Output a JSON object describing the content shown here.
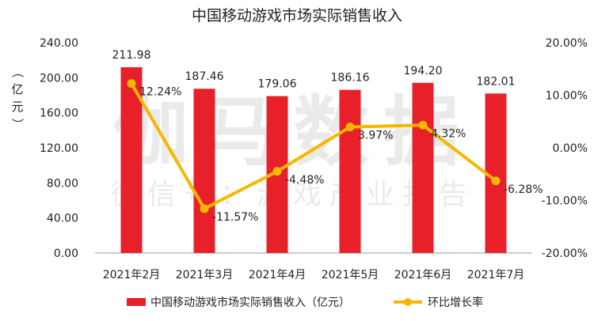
{
  "chart_data": {
    "type": "bar",
    "title": "中国移动游戏市场实际销售收入",
    "watermark": [
      "伽马数据",
      "微信号：游戏产业报告"
    ],
    "y_left_label": "（亿元）",
    "categories": [
      "2021年2月",
      "2021年3月",
      "2021年4月",
      "2021年5月",
      "2021年6月",
      "2021年7月"
    ],
    "series": [
      {
        "name": "中国移动游戏市场实际销售收入（亿元）",
        "type": "bar",
        "axis": "left",
        "color": "#e8202a",
        "values": [
          211.98,
          187.46,
          179.06,
          186.16,
          194.2,
          182.01
        ],
        "labels": [
          "211.98",
          "187.46",
          "179.06",
          "186.16",
          "194.20",
          "182.01"
        ]
      },
      {
        "name": "环比增长率",
        "type": "line",
        "axis": "right",
        "color": "#f5b800",
        "values": [
          12.24,
          -11.57,
          -4.48,
          3.97,
          4.32,
          -6.28
        ],
        "labels": [
          "12.24%",
          "-11.57%",
          "-4.48%",
          "3.97%",
          "4.32%",
          "-6.28%"
        ]
      }
    ],
    "y_left": {
      "min": 0,
      "max": 240,
      "ticks": [
        "0.00",
        "40.00",
        "80.00",
        "120.00",
        "160.00",
        "200.00",
        "240.00"
      ]
    },
    "y_right": {
      "min": -20,
      "max": 20,
      "ticks": [
        "-20.00%",
        "-10.00%",
        "0.00%",
        "10.00%",
        "20.00%"
      ]
    },
    "legend_position": "bottom",
    "grid": false
  }
}
